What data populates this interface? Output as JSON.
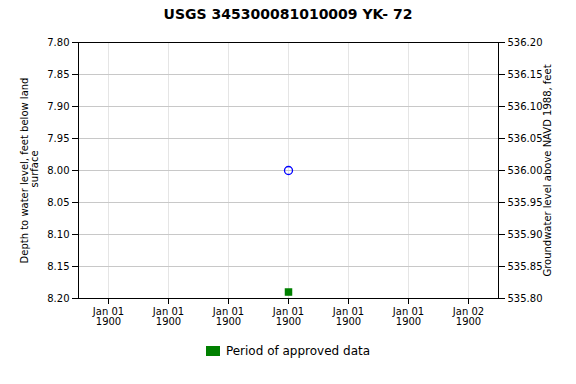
{
  "chart_data": {
    "type": "scatter",
    "title": "USGS 345300081010009 YK-  72",
    "ylabel": "Depth to water level, feet below land\n surface",
    "y2label": "Groundwater level above NAVD 1988, feet",
    "categories": [
      "Jan 01\n1900",
      "Jan 01\n1900",
      "Jan 01\n1900",
      "Jan 01\n1900",
      "Jan 01\n1900",
      "Jan 01\n1900",
      "Jan 02\n1900"
    ],
    "series": [
      {
        "color": "blue",
        "marker": "circle",
        "values": [
          null,
          null,
          null,
          8.0,
          null,
          null,
          null
        ]
      },
      {
        "name": "Period of approved data",
        "color": "#008000",
        "marker": "square",
        "values": [
          null,
          null,
          null,
          8.19,
          null,
          null,
          null
        ]
      }
    ],
    "ylim": [
      8.2,
      7.8
    ],
    "yticks": [
      {
        "value": 7.8,
        "label": "7.80"
      },
      {
        "value": 7.85,
        "label": "7.85"
      },
      {
        "value": 7.9,
        "label": "7.90"
      },
      {
        "value": 7.95,
        "label": "7.95"
      },
      {
        "value": 8.0,
        "label": "8.00"
      },
      {
        "value": 8.05,
        "label": "8.05"
      },
      {
        "value": 8.1,
        "label": "8.10"
      },
      {
        "value": 8.15,
        "label": "8.15"
      },
      {
        "value": 8.2,
        "label": "8.20"
      }
    ],
    "y2lim": [
      535.8,
      536.2
    ],
    "y2ticks": [
      {
        "value": 535.8,
        "label": "535.80"
      },
      {
        "value": 535.85,
        "label": "535.85"
      },
      {
        "value": 535.9,
        "label": "535.90"
      },
      {
        "value": 535.95,
        "label": "535.95"
      },
      {
        "value": 536.0,
        "label": "536.00"
      },
      {
        "value": 536.05,
        "label": "536.05"
      },
      {
        "value": 536.1,
        "label": "536.10"
      },
      {
        "value": 536.15,
        "label": "536.15"
      },
      {
        "value": 536.2,
        "label": "536.20"
      }
    ],
    "grid": true,
    "legend": "bottom"
  }
}
